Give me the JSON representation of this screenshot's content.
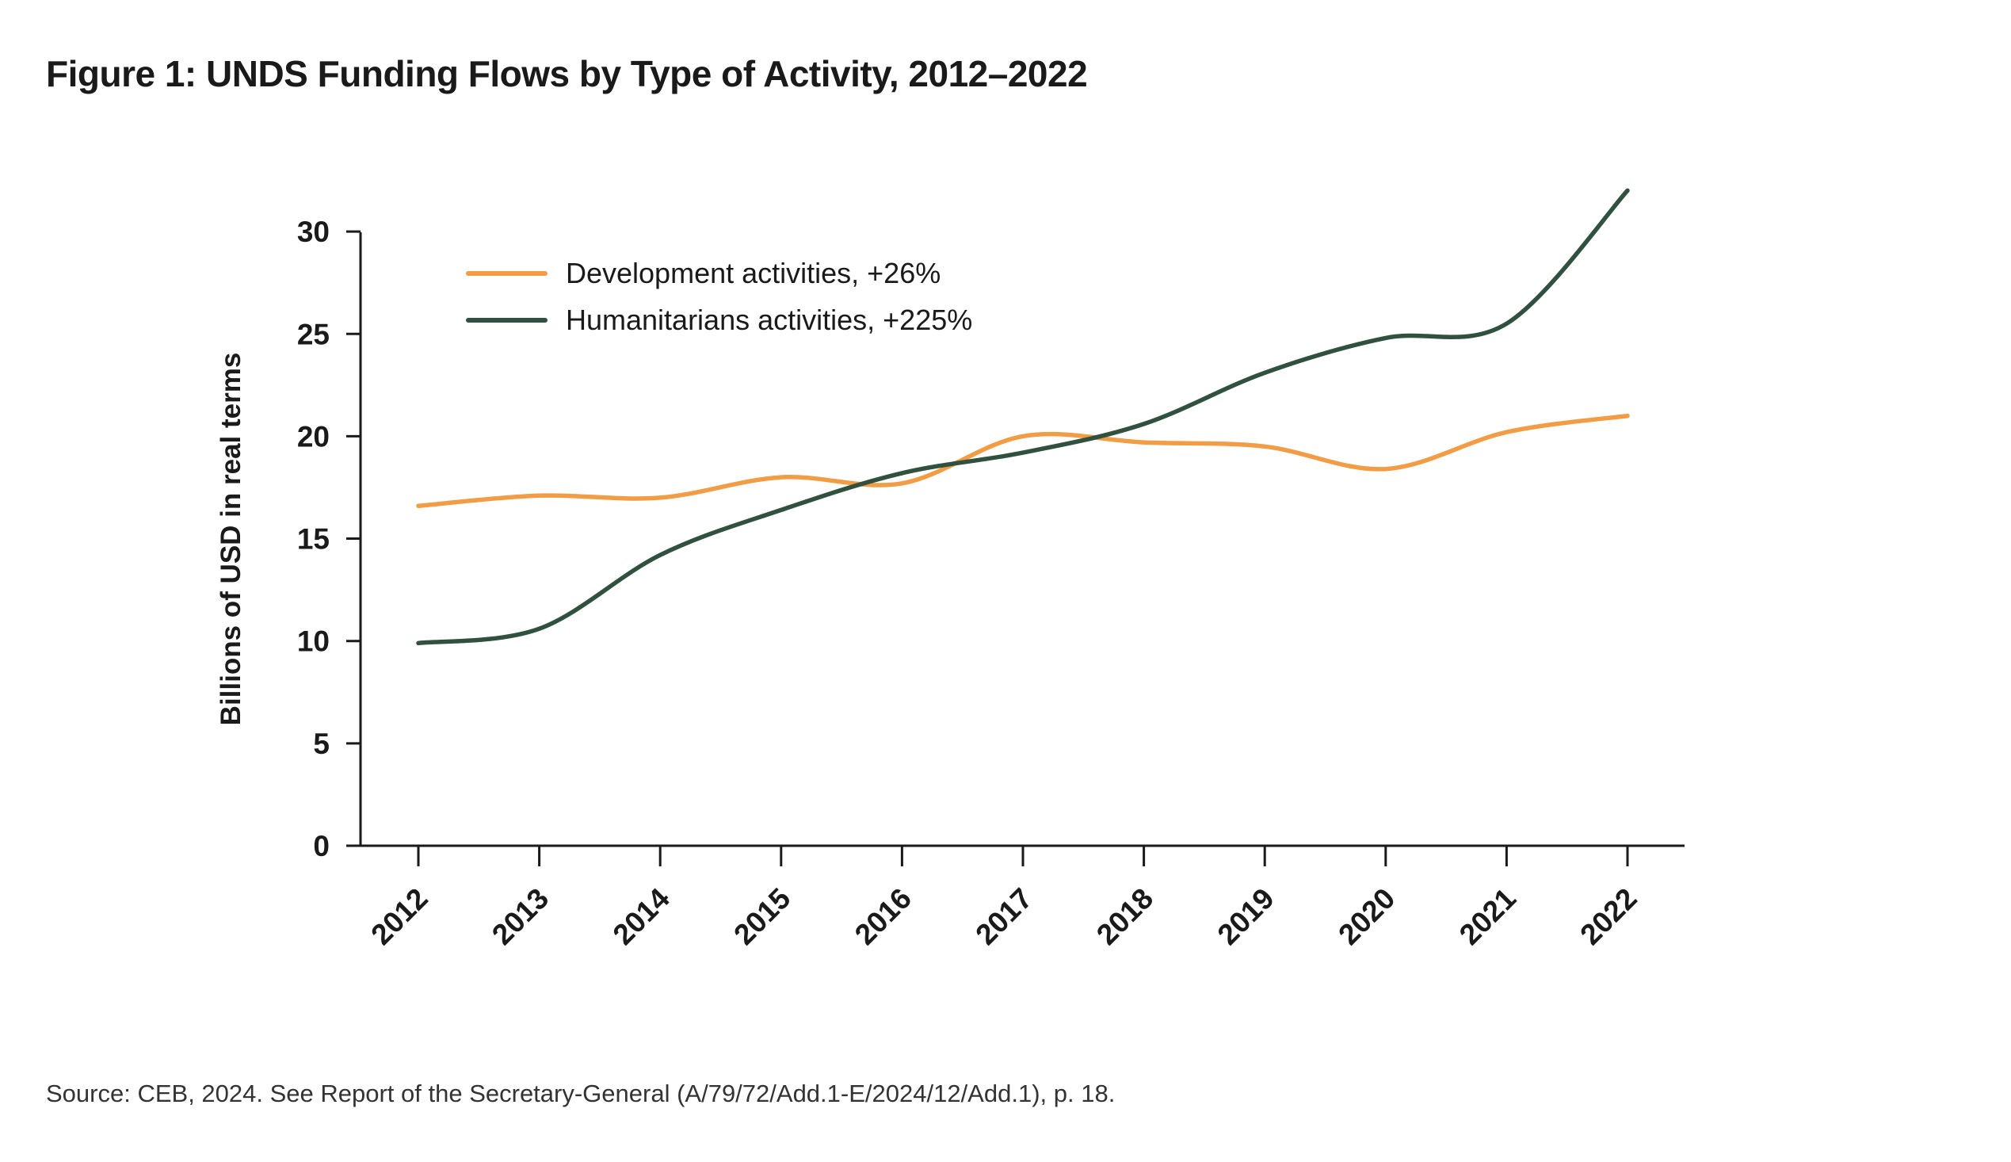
{
  "figure": {
    "title": "Figure 1: UNDS Funding Flows by Type of Activity, 2012–2022",
    "source": "Source: CEB, 2024. See Report of the Secretary-General (A/79/72/Add.1-E/2024/12/Add.1), p. 18."
  },
  "chart_data": {
    "type": "line",
    "title": "",
    "xlabel": "",
    "ylabel": "Billions of USD in real terms",
    "x": [
      "2012",
      "2013",
      "2014",
      "2015",
      "2016",
      "2017",
      "2018",
      "2019",
      "2020",
      "2021",
      "2022"
    ],
    "ylim": [
      0,
      30
    ],
    "yticks": [
      0,
      5,
      10,
      15,
      20,
      25,
      30
    ],
    "grid": false,
    "legend_position": "top-left",
    "series": [
      {
        "name": "Development activities, +26%",
        "color": "#F29C45",
        "values": [
          16.6,
          17.1,
          17.0,
          18.0,
          17.7,
          20.0,
          19.7,
          19.5,
          18.4,
          20.2,
          21.0
        ]
      },
      {
        "name": "Humanitarians activities, +225%",
        "color": "#31513F",
        "values": [
          9.9,
          10.6,
          14.2,
          16.4,
          18.2,
          19.2,
          20.6,
          23.1,
          24.8,
          25.5,
          32.0
        ]
      }
    ]
  }
}
